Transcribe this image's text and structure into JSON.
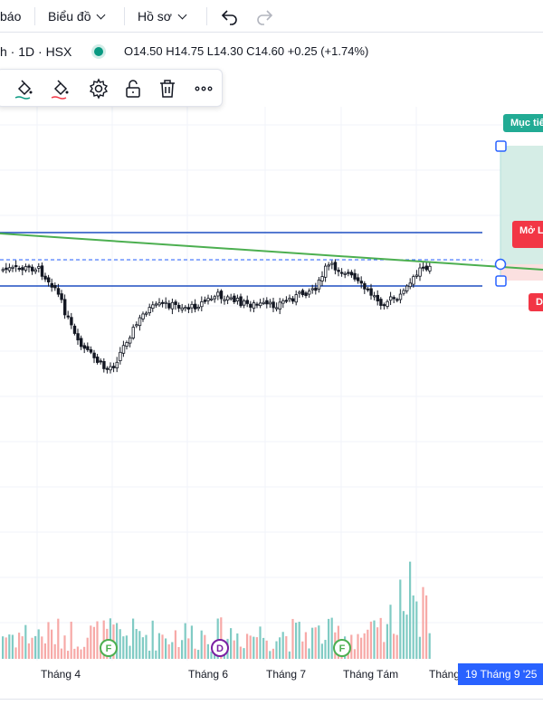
{
  "toolbar": {
    "alerts_label": "báo",
    "chart_label": "Biểu đồ",
    "profile_label": "Hồ sơ"
  },
  "legend": {
    "symbol": "h · 1D · HSX",
    "ohlc": "O14.50 H14.75 L14.30 C14.60 +0.25 (+1.74%)",
    "up_color": "#089981",
    "down_color": "#f23645"
  },
  "drawing_toolbar": {
    "icons": [
      "paint-bucket-icon",
      "paint-bucket-icon",
      "gear-icon",
      "lock-open-icon",
      "trash-icon",
      "more-icon"
    ]
  },
  "position_tool": {
    "target_label": "Mục tiê",
    "open_label": "Mở L",
    "stop_label": "D"
  },
  "time_axis": {
    "labels": [
      "Tháng 4",
      "Tháng 6",
      "Tháng 7",
      "Tháng Tám",
      "Tháng"
    ],
    "cursor_date": "19 Tháng 9 '25"
  },
  "events": {
    "markers": [
      "F",
      "D",
      "F"
    ]
  },
  "colors": {
    "accent": "#2962ff",
    "trend_line": "#4caf50",
    "horizontal_lines": "#1e4fc2",
    "volume_up": "#80cbc4",
    "volume_down": "#f7a9a7",
    "target_zone": "#d5ede6",
    "stop_zone": "#fbe0e0",
    "marker_f": "#4caf50",
    "marker_d": "#7b1fa2"
  }
}
